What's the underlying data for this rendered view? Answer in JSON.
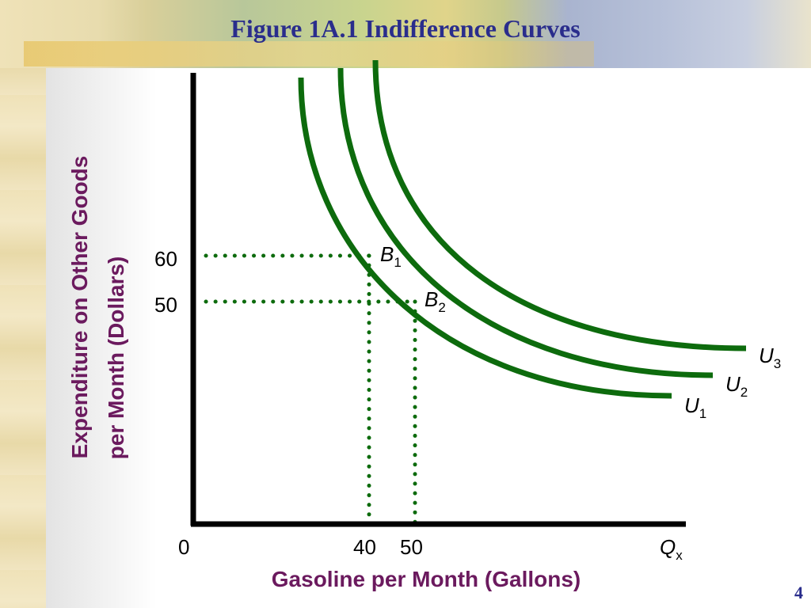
{
  "slide": {
    "title": "Figure 1A.1 Indifference Curves",
    "number": "4"
  },
  "chart_data": {
    "type": "line",
    "xlabel": "Gasoline per Month (Gallons)",
    "ylabel_line1": "Expenditure on Other Goods",
    "ylabel_line2": "per Month (Dollars)",
    "x_ticks": [
      "0",
      "40",
      "50"
    ],
    "y_ticks": [
      "60",
      "50"
    ],
    "x_axis_end_label": "Q",
    "x_axis_end_sub": "x",
    "series": [
      {
        "label": "U",
        "sub": "1",
        "color": "#0d6b0d"
      },
      {
        "label": "U",
        "sub": "2",
        "color": "#0d6b0d"
      },
      {
        "label": "U",
        "sub": "3",
        "color": "#0d6b0d"
      }
    ],
    "points": [
      {
        "label": "B",
        "sub": "1",
        "x": 40,
        "y": 60
      },
      {
        "label": "B",
        "sub": "2",
        "x": 50,
        "y": 50
      }
    ],
    "guide_color": "#0d6b0d"
  }
}
